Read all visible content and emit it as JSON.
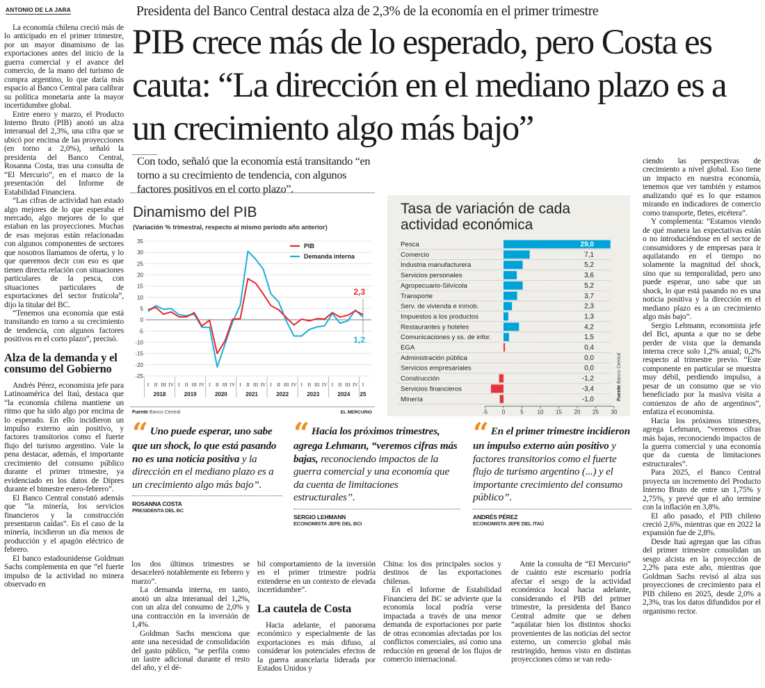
{
  "byline": "ANTONIO DE LA JARA",
  "kicker": "Presidenta del Banco Central destaca alza de 2,3% de la economía en el primer trimestre",
  "headline": "PIB crece más de lo esperado, pero Costa es cauta: “La dirección en el mediano plazo es a un crecimiento algo más bajo”",
  "deck": "Con todo, señaló que la economía está transitando “en torno a su crecimiento de tendencia, con algunos factores positivos en el corto plazo”.",
  "left_column": {
    "paragraphs": [
      "La economía chilena creció más de lo anticipado en el primer trimestre, por un mayor dinamismo de las exportaciones antes del inicio de la guerra comercial y el avance del comercio, de la mano del turismo de compra argentino, lo que daría más espacio al Banco Central para calibrar su política monetaria ante la mayor incertidumbre global.",
      "Entre enero y marzo, el Producto Interno Bruto (PIB) anotó un alza interanual del 2,3%, una cifra que se ubicó por encima de las proyecciones (en torno a 2,0%), señaló la presidenta del Banco Central, Rosanna Costa, tras una consulta de “El Mercurio”, en el marco de la presentación del Informe de Estabilidad Financiera.",
      "“Las cifras de actividad han estado algo mejores de lo que esperaba el mercado, algo mejores de lo que estaban en las proyecciones. Muchas de esas mejoras están relacionadas con algunos componentes de sectores que nosotros llamamos de oferta, y lo que queremos decir con eso es que tienen directa relación con situaciones particulares de la pesca, con situaciones particulares de exportaciones del sector frutícola”, dijo la titular del BC.",
      "“Tenemos una economía que está transitando en torno a su crecimiento de tendencia, con algunos factores positivos en el corto plazo”, precisó."
    ],
    "subhead": "Alza de la demanda y el consumo del Gobierno",
    "paragraphs2": [
      "Andrés Pérez, economista jefe para Latinoamérica del Itaú, destaca que “la economía chilena mantiene un ritmo que ha sido algo por encima de lo esperado. En ello incidieron un impulso externo aún positivo, y factores transitorios como el fuerte flujo del turismo argentino. Vale la pena destacar, además, el importante crecimiento del consumo público durante el primer trimestre, ya evidenciado en los datos de Dipres durante el bimestre enero-febrero”.",
      "El Banco Central constató además que “la minería, los servicios financieros y la construcción presentaron caídas”. En el caso de la minería, incidieron un día menos de producción y el apagón eléctrico de febrero.",
      "El banco estadounidense Goldman Sachs complementa en que “el fuerte impulso de la actividad no minera observado en"
    ]
  },
  "bottom_columns": {
    "col1": [
      "los dos últimos trimestres se desaceleró notablemente en febrero y marzo”.",
      "La demanda interna, en tanto, anotó un alza interanual del 1,2%, con un alza del consumo de 2,0% y una contracción en la inversión de 1,4%.",
      "Goldman Sachs menciona que ante una necesidad de consolidación del gasto público, “se perfila como un lastre adicional durante el resto del año, y el dé-"
    ],
    "col2_lead": "bil comportamiento de la inversión en el primer trimestre podría extenderse en un contexto de elevada incertidumbre”.",
    "col2_subhead": "La cautela de Costa",
    "col2_p": "Hacia adelante, el panorama económico y especialmente de las exportaciones es más difuso, al considerar los potenciales efectos de la guerra arancelaria liderada por Estados Unidos y",
    "col3": [
      "China: los dos principales socios y destinos de las exportaciones chilenas.",
      "En el Informe de Estabilidad Financiera del BC se advierte que la economía local podría verse impactada a través de una menor demanda de exportaciones por parte de otras economías afectadas por los conflictos comerciales, así como una reducción en general de los flujos de comercio internacional."
    ],
    "col4": [
      "Ante la consulta de “El Mercurio” de cuánto este escenario podría afectar el sesgo de la actividad económica local hacia adelante, considerando el PIB del primer trimestre, la presidenta del Banco Central admite que se deben “aquilatar bien los distintos shocks provenientes de las noticias del sector externo, un comercio global más restringido, hemos visto en distintas proyecciones cómo se van redu-"
    ]
  },
  "right_column": [
    "ciendo las perspectivas de crecimiento a nivel global. Eso tiene un impacto en nuestra economía, tenemos que ver también y estamos analizando qué es lo que estamos mirando en indicadores de comercio como transporte, fletes, etcétera”.",
    "Y complementa: “Estamos viendo de qué manera las expectativas están o no introduciéndose en el sector de consumidores y de empresas para ir aquilatando en el tiempo no solamente la magnitud del shock, sino que su temporalidad, pero uno puede esperar, uno sabe que un shock, lo que está pasando no es una noticia positiva y la dirección en el mediano plazo es a un crecimiento algo más bajo”.",
    "Sergio Lehmann, economista jefe del Bci, apunta a que no se debe perder de vista que la demanda interna crece solo 1,2% anual; 0,2% respecto al trimestre previo. “Este componente en particular se muestra muy débil, perdiendo impulso, a pesar de un consumo que se vio beneficiado por la masiva visita a comienzos de año de argentinos”, enfatiza el economista.",
    "Hacia los próximos trimestres, agrega Lehmann, “veremos cifras más bajas, reconociendo impactos de la guerra comercial y una economía que da cuenta de limitaciones estructurales”.",
    "Para 2025, el Banco Central proyecta un incremento del Producto Interno Bruto de entre un 1,75% y 2,75%, y prevé que el año termine con la inflación en 3,8%.",
    "El año pasado, el PIB chileno creció 2,6%, mientras que en 2022 la expansión fue de 2,8%.",
    "Desde Itaú agregan que las cifras del primer trimestre consolidan un sesgo alcista en la proyección de 2,2% para este año, mientras que Goldman Sachs revisó al alza sus proyecciones de crecimiento para el PIB chileno en 2025, desde 2,0% a 2,3%, tras los datos difundidos por el organismo rector."
  ],
  "quotes": [
    {
      "bold": "Uno puede esperar, uno sabe que un shock, lo que está pasando no es una noticia positiva",
      "rest": " y la dirección en el mediano plazo es a un crecimiento algo más bajo”.",
      "name": "ROSANNA COSTA",
      "role": "PRESIDENTA DEL BC"
    },
    {
      "bold": "Hacia los próximos trimestres, agrega Lehmann, “veremos cifras más bajas,",
      "rest": " reconociendo impactos de la guerra comercial y una economía que da cuenta de limitaciones estructurales”.",
      "name": "SERGIO LEHMANN",
      "role": "ECONOMISTA JEFE DEL BCI"
    },
    {
      "bold": "En el primer trimestre incidieron un impulso externo aún positivo",
      "rest": " y factores transitorios como el fuerte flujo de turismo argentino (...) y el importante crecimiento del consumo público”.",
      "name": "ANDRÉS PÉREZ",
      "role": "ECONOMISTA JEFE DEL ITAÚ"
    }
  ],
  "quote_mark_color": "#f08a24",
  "chart_data": [
    {
      "type": "line",
      "title": "Dinamismo del PIB",
      "subtitle": "(Variación % trimestral, respecto al mismo período año anterior)",
      "ylim": [
        -25,
        35
      ],
      "yticks": [
        35,
        30,
        25,
        20,
        15,
        10,
        5,
        0,
        -5,
        -10,
        -15,
        -20,
        -25
      ],
      "grid": true,
      "legend": "top-right",
      "quarters": [
        "I",
        "II",
        "III",
        "IV"
      ],
      "years": [
        "2018",
        "2019",
        "2020",
        "2021",
        "2022",
        "2023",
        "2024",
        "25"
      ],
      "series": [
        {
          "name": "PIB",
          "color": "#e8262e",
          "end_label": "2,3",
          "values": [
            4.5,
            5.5,
            2.5,
            3.5,
            1.3,
            1.3,
            3.2,
            -2.8,
            -0.2,
            -15,
            -9.5,
            0.2,
            0.5,
            18.3,
            16.3,
            11.5,
            6.3,
            4.5,
            1.0,
            -2.3,
            0.3,
            -0.5,
            0.5,
            0.3,
            3.2,
            1.2,
            2.0,
            4.0,
            2.3
          ]
        },
        {
          "name": "Demanda interna",
          "color": "#1aaed6",
          "end_label": "1,2",
          "values": [
            3.7,
            6.3,
            4.7,
            5.0,
            2.3,
            1.8,
            2.5,
            -3.3,
            -3.3,
            -21,
            -11,
            -1,
            6.5,
            30.5,
            27,
            22.5,
            11.5,
            8,
            -0.5,
            -7.2,
            -7.2,
            -4.3,
            -3.2,
            -2.7,
            2.8,
            -1.5,
            -0.5,
            4.3,
            1.2
          ]
        }
      ],
      "source_label": "Fuente",
      "source": "Banco Central",
      "credit": "EL MERCURIO"
    },
    {
      "type": "bar",
      "title": "Tasa de variación de cada actividad económica",
      "xlim": [
        -5,
        30
      ],
      "xticks": [
        -5,
        0,
        5,
        10,
        15,
        20,
        25,
        30
      ],
      "categories": [
        "Pesca",
        "Comercio",
        "Industria manufacturera",
        "Servicios personales",
        "Agropecuario-Silvícola",
        "Transporte",
        "Serv. de vivienda e inmob.",
        "Impuestos a los productos",
        "Restaurantes y hoteles",
        "Comunicaciones y ss. de infor.",
        "EGA",
        "Administración pública",
        "Servicios empresariales",
        "Construcción",
        "Servicios financieros",
        "Minería"
      ],
      "values": [
        29.0,
        7.1,
        5.2,
        3.6,
        5.2,
        3.7,
        2.3,
        1.3,
        4.2,
        1.5,
        0.4,
        0.0,
        0.0,
        -1.2,
        -3.4,
        -1.0
      ],
      "value_labels": [
        "29,0",
        "7,1",
        "5,2",
        "3,6",
        "5,2",
        "3,7",
        "2,3",
        "1,3",
        "4,2",
        "1,5",
        "0,4",
        "0,0",
        "0,0",
        "-1,2",
        "-3,4",
        "-1,0"
      ],
      "colors": {
        "positive": "#00a3d9",
        "negative": "#e8323c",
        "background": "#efeee9"
      },
      "source_label": "Fuente",
      "source": "Banco Central"
    }
  ]
}
